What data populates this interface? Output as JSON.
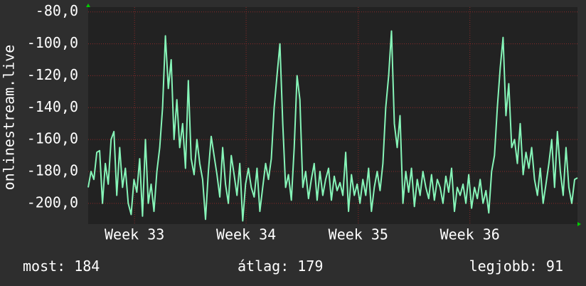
{
  "chart_data": {
    "type": "line",
    "y_label": "onlinestream.live",
    "ylim": [
      -213,
      -77
    ],
    "yticks": [
      {
        "value": -80,
        "label": "-80,0"
      },
      {
        "value": -100,
        "label": "-100,0"
      },
      {
        "value": -120,
        "label": "-120,0"
      },
      {
        "value": -140,
        "label": "-140,0"
      },
      {
        "value": -160,
        "label": "-160,0"
      },
      {
        "value": -180,
        "label": "-180,0"
      },
      {
        "value": -200,
        "label": "-200,0"
      }
    ],
    "xlim": [
      0,
      171
    ],
    "xticks": [
      {
        "value": 16.2,
        "label": "Week 33"
      },
      {
        "value": 55.2,
        "label": "Week 34"
      },
      {
        "value": 94.4,
        "label": "Week 35"
      },
      {
        "value": 133.4,
        "label": "Week 36"
      }
    ],
    "grid": true,
    "series": [
      {
        "color": "#86f5b8",
        "values": [
          -190,
          -180,
          -185,
          -168,
          -167,
          -200,
          -175,
          -188,
          -160,
          -155,
          -195,
          -165,
          -190,
          -178,
          -200,
          -207,
          -185,
          -193,
          -172,
          -208,
          -160,
          -200,
          -188,
          -205,
          -180,
          -165,
          -140,
          -95,
          -128,
          -110,
          -160,
          -135,
          -165,
          -150,
          -178,
          -123,
          -172,
          -182,
          -160,
          -175,
          -185,
          -210,
          -180,
          -158,
          -170,
          -182,
          -196,
          -165,
          -188,
          -200,
          -170,
          -182,
          -195,
          -175,
          -211,
          -188,
          -178,
          -190,
          -196,
          -178,
          -205,
          -190,
          -175,
          -185,
          -172,
          -140,
          -120,
          -100,
          -150,
          -190,
          -182,
          -198,
          -165,
          -120,
          -135,
          -190,
          -180,
          -197,
          -185,
          -175,
          -198,
          -180,
          -195,
          -185,
          -178,
          -198,
          -183,
          -192,
          -187,
          -195,
          -168,
          -205,
          -182,
          -195,
          -188,
          -200,
          -185,
          -195,
          -178,
          -205,
          -190,
          -180,
          -192,
          -175,
          -140,
          -120,
          -92,
          -150,
          -165,
          -145,
          -200,
          -180,
          -193,
          -178,
          -202,
          -185,
          -195,
          -180,
          -190,
          -197,
          -182,
          -198,
          -185,
          -190,
          -200,
          -183,
          -193,
          -178,
          -205,
          -190,
          -195,
          -188,
          -200,
          -182,
          -203,
          -190,
          -197,
          -185,
          -200,
          -192,
          -206,
          -180,
          -170,
          -140,
          -115,
          -96,
          -145,
          -125,
          -165,
          -160,
          -175,
          -150,
          -182,
          -168,
          -178,
          -165,
          -185,
          -195,
          -178,
          -200,
          -188,
          -175,
          -160,
          -190,
          -155,
          -180,
          -195,
          -165,
          -190,
          -200,
          -185,
          -184
        ]
      }
    ],
    "stats": [
      {
        "label": "most:",
        "value": 184
      },
      {
        "label": "átlag:",
        "value": 179
      },
      {
        "label": "legjobb:",
        "value": 91
      }
    ]
  }
}
